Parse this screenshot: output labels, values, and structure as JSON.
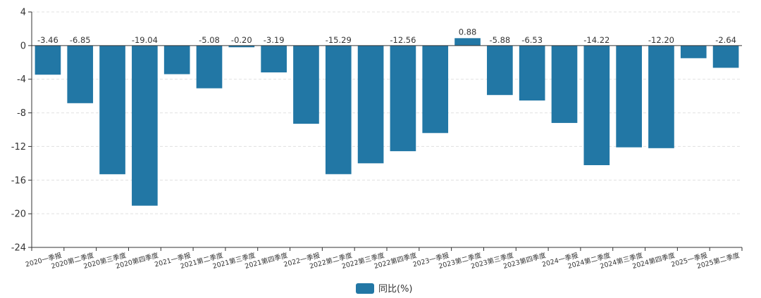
{
  "chart_data": {
    "type": "bar",
    "title": "",
    "xlabel": "",
    "ylabel": "",
    "ylim": [
      -24,
      4
    ],
    "yticks": [
      4,
      0,
      -4,
      -8,
      -12,
      -16,
      -20,
      -24
    ],
    "grid": true,
    "legend_position": "bottom-center",
    "bar_color": "#2277a5",
    "categories": [
      "2020一季报",
      "2020第二季度",
      "2020第三季度",
      "2020第四季度",
      "2021一季报",
      "2021第二季度",
      "2021第三季度",
      "2021第四季度",
      "2022一季报",
      "2022第二季度",
      "2022第三季度",
      "2022第四季度",
      "2023一季报",
      "2023第二季度",
      "2023第三季度",
      "2023第四季度",
      "2024一季报",
      "2024第二季度",
      "2024第三季度",
      "2024第四季度",
      "2025一季报",
      "2025第二季度"
    ],
    "series": [
      {
        "name": "同比(%)",
        "values": [
          -3.46,
          -6.85,
          -15.3,
          -19.04,
          -3.4,
          -5.08,
          -0.2,
          -3.19,
          -9.3,
          -15.29,
          -14.0,
          -12.56,
          -10.4,
          0.88,
          -5.88,
          -6.53,
          -9.2,
          -14.22,
          -12.1,
          -12.2,
          -1.5,
          -2.64
        ],
        "labels": [
          "-3.46",
          "-6.85",
          "",
          "-19.04",
          "",
          "-5.08",
          "-0.20",
          "-3.19",
          "",
          "-15.29",
          "",
          "-12.56",
          "",
          "0.88",
          "-5.88",
          "-6.53",
          "",
          "-14.22",
          "",
          "-12.20",
          "",
          "-2.64"
        ]
      }
    ]
  }
}
